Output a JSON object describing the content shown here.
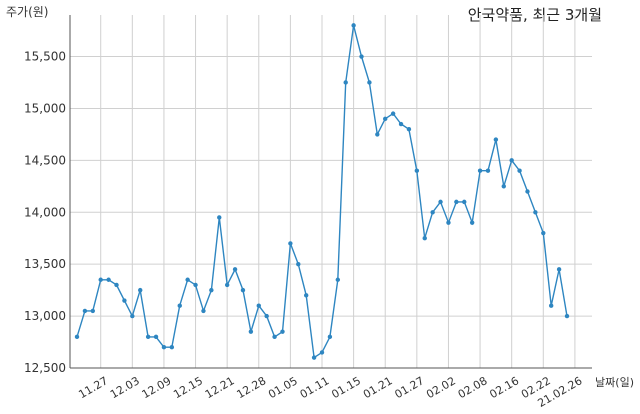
{
  "chart_data": {
    "type": "line",
    "title": "안국약품, 최근 3개월",
    "ylabel": "주가(원)",
    "xlabel": "날짜(일)",
    "ylim": [
      12500,
      15900
    ],
    "yticks": [
      12500,
      13000,
      13500,
      14000,
      14500,
      15000,
      15500
    ],
    "ytick_labels": [
      "12,500",
      "13,000",
      "13,500",
      "14,000",
      "14,500",
      "15,000",
      "15,500"
    ],
    "xtick_labels": [
      "11.27",
      "12.03",
      "12.09",
      "12.15",
      "12.21",
      "12.28",
      "01.05",
      "01.11",
      "01.15",
      "01.21",
      "01.27",
      "02.02",
      "02.08",
      "02.16",
      "02.22",
      "21.02.26"
    ],
    "xtick_positions": [
      3,
      7,
      11,
      15,
      19,
      23,
      27,
      31,
      35,
      39,
      43,
      47,
      51,
      55,
      59,
      63
    ],
    "grid": true,
    "line_color": "#2e86c1",
    "series": [
      {
        "values": [
          12800,
          13050,
          13050,
          13350,
          13350,
          13300,
          13150,
          13000,
          13250,
          12800,
          12800,
          12700,
          12700,
          13100,
          13350,
          13300,
          13050,
          13250,
          13950,
          13300,
          13450,
          13250,
          12850,
          13100,
          13000,
          12800,
          12850,
          13700,
          13500,
          13200,
          12600,
          12650,
          12800,
          13350,
          15250,
          15800,
          15500,
          15250,
          14750,
          14900,
          14950,
          14850,
          14800,
          14400,
          13750,
          14000,
          14100,
          13900,
          14100,
          14100,
          13900,
          14400,
          14400,
          14700,
          14250,
          14500,
          14400,
          14200,
          14000,
          13800,
          13100,
          13450,
          13000
        ]
      }
    ]
  }
}
